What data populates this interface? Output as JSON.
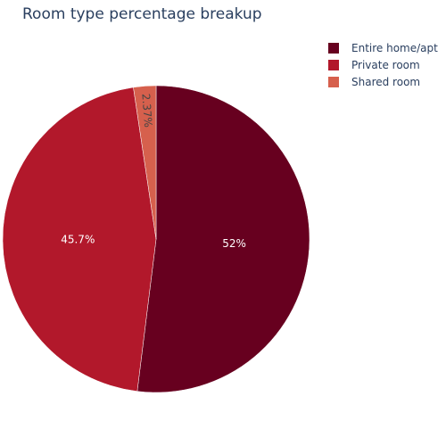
{
  "chart_data": {
    "type": "pie",
    "title": "Room type percentage breakup",
    "labels": [
      "Entire home/apt",
      "Private room",
      "Shared room"
    ],
    "values": [
      52.0,
      45.7,
      2.37
    ],
    "text": [
      "52%",
      "45.7%",
      "2.37%"
    ],
    "colors": [
      "#67001f",
      "#b2182b",
      "#d6604d"
    ],
    "label_colors": [
      "#ffffff",
      "#ffffff",
      "#444444"
    ],
    "direction": "clockwise",
    "rotation_start_deg": 0,
    "legend_position": "top-right"
  }
}
